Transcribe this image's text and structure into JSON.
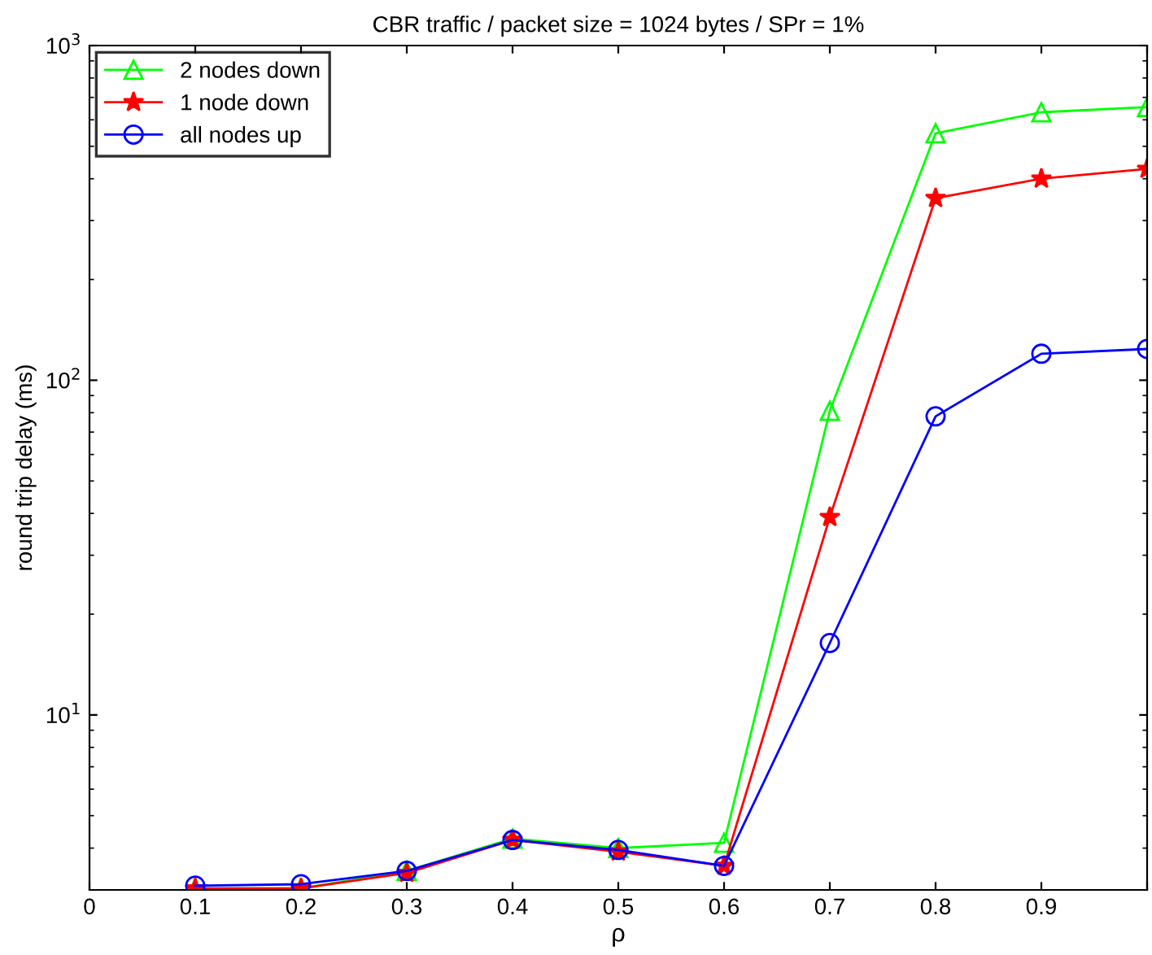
{
  "chart_data": {
    "type": "line",
    "title": "CBR traffic / packet size = 1024 bytes / SPr = 1%",
    "xlabel": "ρ",
    "ylabel": "round trip delay (ms)",
    "x": [
      0.1,
      0.2,
      0.3,
      0.4,
      0.5,
      0.6,
      0.7,
      0.8,
      0.9,
      1.0
    ],
    "series": [
      {
        "name": "2 nodes down",
        "color": "#00ff00",
        "marker": "triangle",
        "values": [
          3.03,
          3.03,
          3.42,
          4.27,
          4.0,
          4.15,
          81,
          547,
          632,
          655
        ]
      },
      {
        "name": "1 node down",
        "color": "#ff0000",
        "marker": "star",
        "values": [
          3.03,
          3.03,
          3.37,
          4.23,
          3.9,
          3.54,
          39,
          350,
          400,
          428
        ]
      },
      {
        "name": "all nodes up",
        "color": "#0000ff",
        "marker": "circle",
        "values": [
          3.09,
          3.12,
          3.42,
          4.23,
          3.95,
          3.54,
          16.4,
          78,
          120,
          124
        ]
      }
    ],
    "log": "y",
    "xlim": [
      0,
      1
    ],
    "ylim": [
      3,
      1000
    ],
    "xticks": [
      0,
      0.1,
      0.2,
      0.3,
      0.4,
      0.5,
      0.6,
      0.7,
      0.8,
      0.9,
      {
        "value": 1,
        "label": null
      }
    ],
    "yticks": [
      {
        "value": 10,
        "label": "10$^{1}$"
      },
      {
        "value": 100,
        "label": "10$^{2}$"
      },
      {
        "value": 1000,
        "label": "10$^{3}$"
      }
    ],
    "grid": false,
    "legend": "top left",
    "line_style": "solid"
  }
}
